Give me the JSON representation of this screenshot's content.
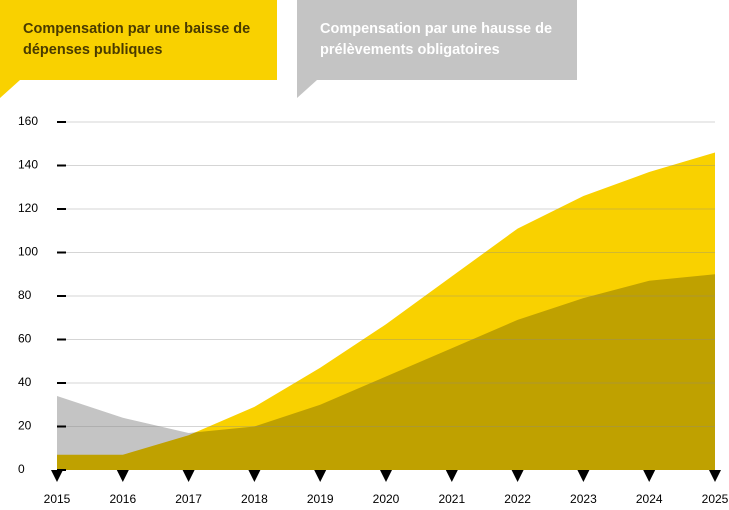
{
  "chart_data": {
    "type": "area",
    "categories": [
      "2015",
      "2016",
      "2017",
      "2018",
      "2019",
      "2020",
      "2021",
      "2022",
      "2023",
      "2024",
      "2025"
    ],
    "series": [
      {
        "name": "Compensation par une baisse de dépenses publiques",
        "color": "#f9d100",
        "text_color": "#4a3b00",
        "values": [
          7,
          7,
          16,
          29,
          47,
          67,
          89,
          111,
          126,
          137,
          146
        ]
      },
      {
        "name": "Compensation par une hausse de prélèvements obligatoires",
        "color": "#c4c4c4",
        "text_color": "#ffffff",
        "values": [
          34,
          24,
          17,
          20,
          30,
          43,
          56,
          69,
          79,
          87,
          90
        ]
      }
    ],
    "ylim": [
      0,
      160
    ],
    "yticks": [
      0,
      20,
      40,
      60,
      80,
      100,
      120,
      140,
      160
    ],
    "grid": true
  }
}
